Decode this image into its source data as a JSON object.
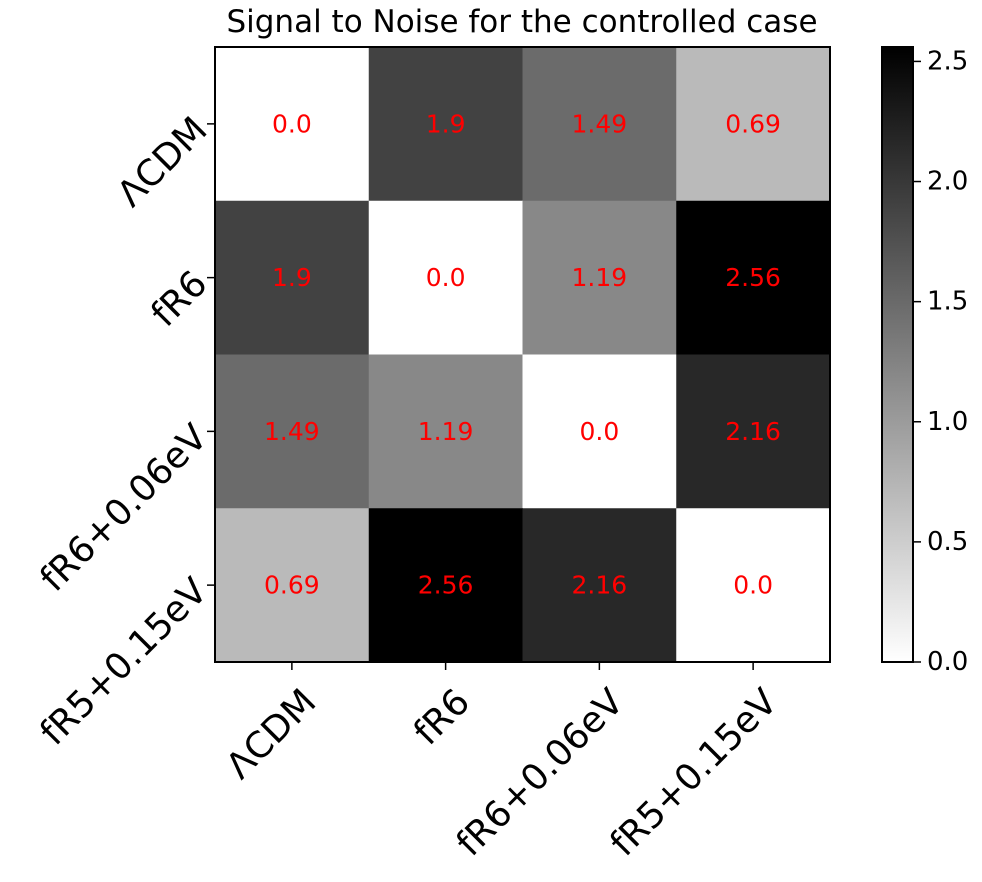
{
  "chart_data": {
    "type": "heatmap",
    "title": "Signal to Noise for the controlled case",
    "x_categories": [
      "ΛCDM",
      "fR6",
      "fR6+0.06eV",
      "fR5+0.15eV"
    ],
    "y_categories": [
      "ΛCDM",
      "fR6",
      "fR6+0.06eV",
      "fR5+0.15eV"
    ],
    "values": [
      [
        0.0,
        1.9,
        1.49,
        0.69
      ],
      [
        1.9,
        0.0,
        1.19,
        2.56
      ],
      [
        1.49,
        1.19,
        0.0,
        2.16
      ],
      [
        0.69,
        2.56,
        2.16,
        0.0
      ]
    ],
    "cell_labels": [
      [
        "0.0",
        "1.9",
        "1.49",
        "0.69"
      ],
      [
        "1.9",
        "0.0",
        "1.19",
        "2.56"
      ],
      [
        "1.49",
        "1.19",
        "0.0",
        "2.16"
      ],
      [
        "0.69",
        "2.56",
        "2.16",
        "0.0"
      ]
    ],
    "colormap": "Greys",
    "colorbar": {
      "range": [
        0.0,
        2.56
      ],
      "ticks": [
        0.0,
        0.5,
        1.0,
        1.5,
        2.0,
        2.5
      ],
      "tick_labels": [
        "0.0",
        "0.5",
        "1.0",
        "1.5",
        "2.0",
        "2.5"
      ]
    },
    "annotation_color": "#ff0000",
    "xlabel": "",
    "ylabel": "",
    "grid": false
  }
}
